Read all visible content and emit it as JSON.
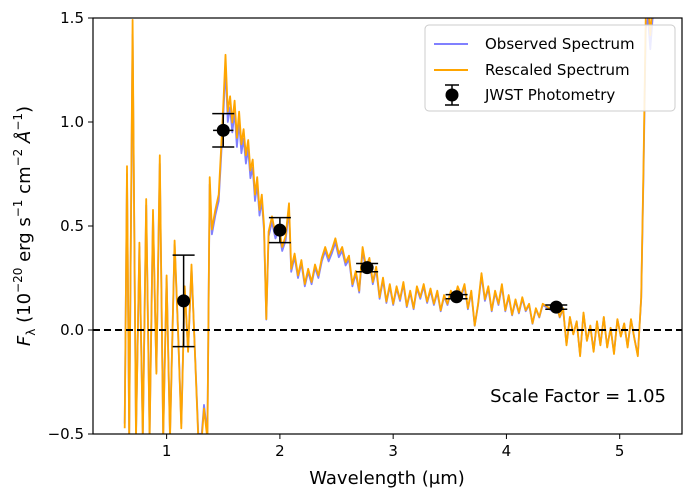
{
  "chart_data": {
    "type": "line",
    "xlabel": "Wavelength (μm)",
    "ylabel_parts": {
      "symbol": "F",
      "subscript": "λ",
      "unit_open": " (10",
      "unit_exp1": "−20",
      "unit_mid1": " erg s",
      "unit_exp2": "−1",
      "unit_mid2": " cm",
      "unit_exp3": "−2",
      "unit_mid3": " Å",
      "unit_exp4": "−1",
      "unit_close": ")"
    },
    "xlim": [
      0.35,
      5.55
    ],
    "ylim": [
      -0.5,
      1.5
    ],
    "xticks": [
      1,
      2,
      3,
      4,
      5
    ],
    "xtick_labels": [
      "1",
      "2",
      "3",
      "4",
      "5"
    ],
    "yticks": [
      -0.5,
      0.0,
      0.5,
      1.0,
      1.5
    ],
    "ytick_labels": [
      "−0.5",
      "0.0",
      "0.5",
      "1.0",
      "1.5"
    ],
    "reference_line": {
      "y": 0.0,
      "style": "dashed",
      "color": "#000000"
    },
    "annotation": "Scale Factor = 1.05",
    "legend": {
      "placement": "top-right",
      "entries": [
        {
          "label": "Observed Spectrum",
          "color": "#8080ff",
          "kind": "line"
        },
        {
          "label": "Rescaled Spectrum",
          "color": "#ffa500",
          "kind": "line"
        },
        {
          "label": "JWST Photometry",
          "color": "#000000",
          "kind": "errorbar"
        }
      ]
    },
    "scale_factor": 1.05,
    "series": [
      {
        "name": "Observed Spectrum",
        "color": "#8080ff",
        "anchors": [
          [
            0.63,
            -0.45
          ],
          [
            0.65,
            0.75
          ],
          [
            0.67,
            -0.5
          ],
          [
            0.7,
            1.42
          ],
          [
            0.73,
            -0.5
          ],
          [
            0.76,
            0.4
          ],
          [
            0.79,
            -0.5
          ],
          [
            0.82,
            0.6
          ],
          [
            0.85,
            -0.5
          ],
          [
            0.88,
            0.55
          ],
          [
            0.91,
            -0.2
          ],
          [
            0.94,
            0.8
          ],
          [
            0.97,
            -0.5
          ],
          [
            1.0,
            0.25
          ],
          [
            1.03,
            -0.5
          ],
          [
            1.07,
            0.41
          ],
          [
            1.1,
            0.0
          ],
          [
            1.13,
            -0.45
          ],
          [
            1.16,
            0.2
          ],
          [
            1.19,
            -0.1
          ],
          [
            1.22,
            0.3
          ],
          [
            1.25,
            -0.1
          ],
          [
            1.28,
            -0.5
          ],
          [
            1.31,
            -0.5
          ],
          [
            1.33,
            -0.36
          ],
          [
            1.36,
            -0.5
          ],
          [
            1.38,
            0.7
          ],
          [
            1.4,
            0.46
          ],
          [
            1.43,
            0.55
          ],
          [
            1.46,
            0.62
          ],
          [
            1.48,
            0.82
          ],
          [
            1.5,
            1.03
          ],
          [
            1.52,
            1.26
          ],
          [
            1.54,
            1.0
          ],
          [
            1.56,
            1.07
          ],
          [
            1.58,
            0.95
          ],
          [
            1.6,
            1.05
          ],
          [
            1.62,
            0.88
          ],
          [
            1.64,
            1.0
          ],
          [
            1.66,
            0.85
          ],
          [
            1.68,
            0.92
          ],
          [
            1.7,
            0.8
          ],
          [
            1.72,
            0.87
          ],
          [
            1.74,
            0.73
          ],
          [
            1.76,
            0.78
          ],
          [
            1.78,
            0.62
          ],
          [
            1.8,
            0.7
          ],
          [
            1.82,
            0.55
          ],
          [
            1.84,
            0.62
          ],
          [
            1.86,
            0.48
          ],
          [
            1.88,
            0.05
          ],
          [
            1.9,
            0.45
          ],
          [
            1.93,
            0.52
          ],
          [
            1.96,
            0.44
          ],
          [
            1.99,
            0.48
          ],
          [
            2.02,
            0.38
          ],
          [
            2.05,
            0.43
          ],
          [
            2.08,
            0.58
          ],
          [
            2.1,
            0.28
          ],
          [
            2.13,
            0.35
          ],
          [
            2.16,
            0.25
          ],
          [
            2.19,
            0.32
          ],
          [
            2.22,
            0.21
          ],
          [
            2.25,
            0.28
          ],
          [
            2.28,
            0.22
          ],
          [
            2.31,
            0.3
          ],
          [
            2.34,
            0.25
          ],
          [
            2.37,
            0.33
          ],
          [
            2.4,
            0.38
          ],
          [
            2.43,
            0.33
          ],
          [
            2.46,
            0.37
          ],
          [
            2.49,
            0.42
          ],
          [
            2.52,
            0.35
          ],
          [
            2.55,
            0.38
          ],
          [
            2.58,
            0.31
          ],
          [
            2.61,
            0.34
          ],
          [
            2.64,
            0.21
          ],
          [
            2.67,
            0.27
          ],
          [
            2.7,
            0.18
          ],
          [
            2.73,
            0.38
          ],
          [
            2.76,
            0.29
          ],
          [
            2.79,
            0.33
          ],
          [
            2.82,
            0.22
          ],
          [
            2.85,
            0.29
          ],
          [
            2.88,
            0.15
          ],
          [
            2.91,
            0.24
          ],
          [
            2.94,
            0.13
          ],
          [
            2.97,
            0.21
          ],
          [
            3.0,
            0.12
          ],
          [
            3.03,
            0.2
          ],
          [
            3.06,
            0.14
          ],
          [
            3.09,
            0.22
          ],
          [
            3.12,
            0.11
          ],
          [
            3.15,
            0.18
          ],
          [
            3.18,
            0.1
          ],
          [
            3.21,
            0.2
          ],
          [
            3.24,
            0.15
          ],
          [
            3.27,
            0.21
          ],
          [
            3.3,
            0.13
          ],
          [
            3.33,
            0.19
          ],
          [
            3.36,
            0.12
          ],
          [
            3.39,
            0.18
          ],
          [
            3.42,
            0.09
          ],
          [
            3.45,
            0.16
          ],
          [
            3.48,
            0.12
          ],
          [
            3.51,
            0.18
          ],
          [
            3.54,
            0.14
          ],
          [
            3.57,
            0.2
          ],
          [
            3.6,
            0.16
          ],
          [
            3.63,
            0.21
          ],
          [
            3.66,
            0.1
          ],
          [
            3.69,
            0.18
          ],
          [
            3.72,
            0.02
          ],
          [
            3.75,
            0.12
          ],
          [
            3.78,
            0.26
          ],
          [
            3.81,
            0.14
          ],
          [
            3.84,
            0.2
          ],
          [
            3.87,
            0.09
          ],
          [
            3.9,
            0.18
          ],
          [
            3.93,
            0.12
          ],
          [
            3.96,
            0.21
          ],
          [
            3.99,
            0.09
          ],
          [
            4.02,
            0.16
          ],
          [
            4.05,
            0.07
          ],
          [
            4.08,
            0.14
          ],
          [
            4.11,
            0.08
          ],
          [
            4.14,
            0.15
          ],
          [
            4.17,
            0.09
          ],
          [
            4.2,
            0.12
          ],
          [
            4.23,
            0.03
          ],
          [
            4.26,
            0.1
          ],
          [
            4.29,
            0.06
          ],
          [
            4.32,
            0.12
          ],
          [
            4.35,
            0.11
          ],
          [
            4.38,
            0.1
          ],
          [
            4.41,
            0.09
          ],
          [
            4.44,
            0.12
          ],
          [
            4.47,
            0.06
          ],
          [
            4.5,
            0.1
          ],
          [
            4.53,
            -0.07
          ],
          [
            4.56,
            0.06
          ],
          [
            4.59,
            -0.02
          ],
          [
            4.62,
            0.04
          ],
          [
            4.65,
            -0.12
          ],
          [
            4.68,
            0.08
          ],
          [
            4.71,
            -0.05
          ],
          [
            4.74,
            0.02
          ],
          [
            4.77,
            -0.1
          ],
          [
            4.8,
            0.04
          ],
          [
            4.83,
            -0.07
          ],
          [
            4.86,
            0.06
          ],
          [
            4.89,
            -0.08
          ],
          [
            4.92,
            0.01
          ],
          [
            4.95,
            -0.11
          ],
          [
            4.98,
            0.05
          ],
          [
            5.01,
            -0.03
          ],
          [
            5.04,
            0.03
          ],
          [
            5.07,
            -0.08
          ],
          [
            5.1,
            0.05
          ],
          [
            5.13,
            -0.04
          ],
          [
            5.16,
            -0.12
          ],
          [
            5.19,
            0.15
          ],
          [
            5.21,
            0.75
          ],
          [
            5.23,
            1.45
          ],
          [
            5.25,
            1.5
          ],
          [
            5.27,
            1.35
          ],
          [
            5.29,
            1.5
          ],
          [
            5.3,
            1.5
          ]
        ]
      },
      {
        "name": "Rescaled Spectrum",
        "color": "#ffa500",
        "derived_from": "Observed Spectrum",
        "multiplier": 1.05
      }
    ],
    "photometry": {
      "name": "JWST Photometry",
      "color": "#000000",
      "points": [
        {
          "x": 1.15,
          "y": 0.14,
          "yerr": 0.22,
          "xerr": 0.0
        },
        {
          "x": 1.5,
          "y": 0.96,
          "yerr": 0.08,
          "xerr": 0.09
        },
        {
          "x": 2.0,
          "y": 0.48,
          "yerr": 0.06,
          "xerr": 0.0
        },
        {
          "x": 2.77,
          "y": 0.3,
          "yerr": 0.02,
          "xerr": 0.0
        },
        {
          "x": 3.56,
          "y": 0.16,
          "yerr": 0.01,
          "xerr": 0.0
        },
        {
          "x": 4.44,
          "y": 0.11,
          "yerr": 0.01,
          "xerr": 0.0
        }
      ]
    }
  }
}
